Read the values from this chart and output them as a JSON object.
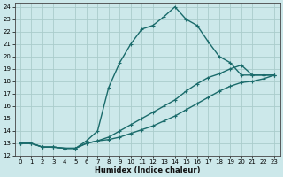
{
  "xlabel": "Humidex (Indice chaleur)",
  "bg_color": "#cce8ea",
  "grid_color": "#aacccc",
  "line_color": "#1a6b6b",
  "xlim": [
    -0.5,
    23.5
  ],
  "ylim": [
    12,
    24.3
  ],
  "xticks": [
    0,
    1,
    2,
    3,
    4,
    5,
    6,
    7,
    8,
    9,
    10,
    11,
    12,
    13,
    14,
    15,
    16,
    17,
    18,
    19,
    20,
    21,
    22,
    23
  ],
  "yticks": [
    12,
    13,
    14,
    15,
    16,
    17,
    18,
    19,
    20,
    21,
    22,
    23,
    24
  ],
  "line1_x": [
    0,
    1,
    2,
    3,
    4,
    5,
    6,
    7,
    8,
    9,
    10,
    11,
    12,
    13,
    14,
    15,
    16,
    17,
    18,
    19,
    20,
    21,
    22,
    23
  ],
  "line1_y": [
    13.0,
    13.0,
    12.7,
    12.7,
    12.6,
    12.6,
    13.2,
    14.0,
    17.5,
    19.5,
    21.0,
    22.2,
    22.5,
    23.2,
    24.0,
    23.0,
    22.5,
    21.2,
    20.0,
    19.5,
    18.5,
    18.5,
    18.5,
    18.5
  ],
  "line2_x": [
    0,
    1,
    2,
    3,
    4,
    5,
    6,
    7,
    8,
    9,
    10,
    11,
    12,
    13,
    14,
    15,
    16,
    17,
    18,
    19,
    20,
    21,
    22,
    23
  ],
  "line2_y": [
    13.0,
    13.0,
    12.7,
    12.7,
    12.6,
    12.6,
    13.0,
    13.2,
    13.5,
    14.0,
    14.5,
    15.0,
    15.5,
    16.0,
    16.5,
    17.2,
    17.8,
    18.3,
    18.6,
    19.0,
    19.3,
    18.5,
    18.5,
    18.5
  ],
  "line3_x": [
    0,
    1,
    2,
    3,
    4,
    5,
    6,
    7,
    8,
    9,
    10,
    11,
    12,
    13,
    14,
    15,
    16,
    17,
    18,
    19,
    20,
    21,
    22,
    23
  ],
  "line3_y": [
    13.0,
    13.0,
    12.7,
    12.7,
    12.6,
    12.6,
    13.0,
    13.2,
    13.3,
    13.5,
    13.8,
    14.1,
    14.4,
    14.8,
    15.2,
    15.7,
    16.2,
    16.7,
    17.2,
    17.6,
    17.9,
    18.0,
    18.2,
    18.5
  ]
}
